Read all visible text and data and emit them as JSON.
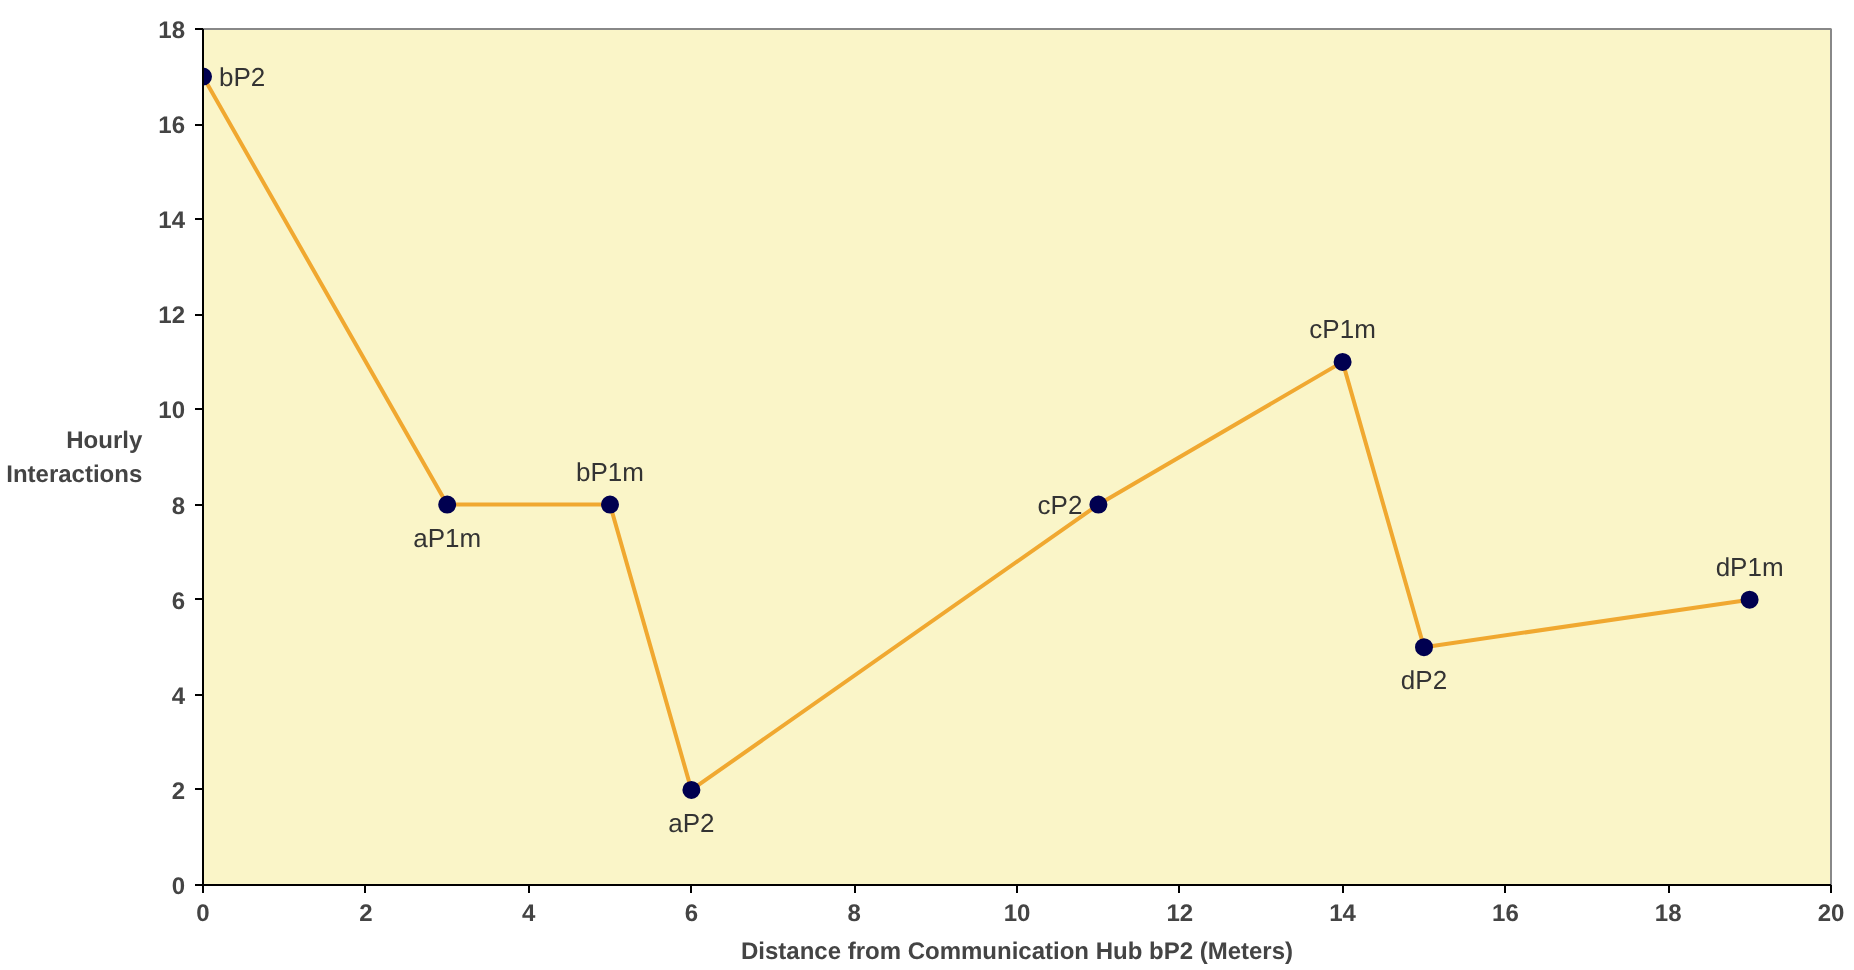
{
  "chart_data": {
    "type": "line",
    "xlabel": "Distance from Communication Hub bP2 (Meters)",
    "ylabel": "Hourly\nInteractions",
    "x": [
      0,
      3,
      5,
      6,
      11,
      14,
      15,
      19
    ],
    "series": [
      {
        "color": "#f0a830",
        "values": [
          17,
          8,
          8,
          2,
          8,
          11,
          5,
          6
        ]
      }
    ],
    "xlim": [
      0,
      20
    ],
    "xticks": [
      0,
      2,
      4,
      6,
      8,
      10,
      12,
      14,
      16,
      18,
      20
    ],
    "ylim": [
      0,
      18
    ],
    "yticks": [
      0,
      2,
      4,
      6,
      8,
      10,
      12,
      14,
      16,
      18
    ],
    "grid": false,
    "marker": "circle",
    "line_style": "solid",
    "annotations": [
      {
        "text": "bP2",
        "x": 0,
        "y": 17
      },
      {
        "text": "aP1m",
        "x": 3,
        "y": 8
      },
      {
        "text": "bP1m",
        "x": 5,
        "y": 8
      },
      {
        "text": "aP2",
        "x": 6,
        "y": 2
      },
      {
        "text": "cP2",
        "x": 11,
        "y": 8
      },
      {
        "text": "cP1m",
        "x": 14,
        "y": 11
      },
      {
        "text": "dP2",
        "x": 15,
        "y": 5
      },
      {
        "text": "dP1m",
        "x": 19,
        "y": 6
      }
    ]
  }
}
